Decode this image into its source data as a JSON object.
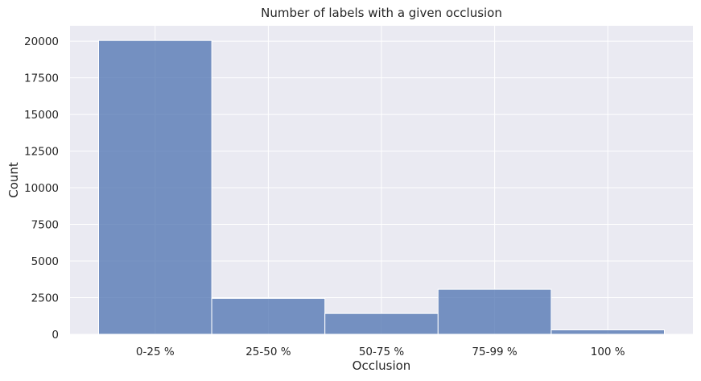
{
  "colors": {
    "plot_background": "#eaeaf2",
    "grid": "#ffffff",
    "bar_fill": "#4c72b0",
    "bar_edge": "#ffffff"
  },
  "chart_data": {
    "type": "bar",
    "title": "Number of labels with a given occlusion",
    "xlabel": "Occlusion",
    "ylabel": "Count",
    "categories": [
      "0-25 %",
      "25-50 %",
      "50-75 %",
      "75-99 %",
      "100 %"
    ],
    "values": [
      20050,
      2450,
      1420,
      3070,
      300
    ],
    "ylim": [
      0,
      21050
    ],
    "yticks": [
      0,
      2500,
      5000,
      7500,
      10000,
      12500,
      15000,
      17500,
      20000
    ],
    "ytick_labels": [
      "0",
      "2500",
      "5000",
      "7500",
      "10000",
      "12500",
      "15000",
      "17500",
      "20000"
    ],
    "grid": true,
    "legend": "none"
  }
}
